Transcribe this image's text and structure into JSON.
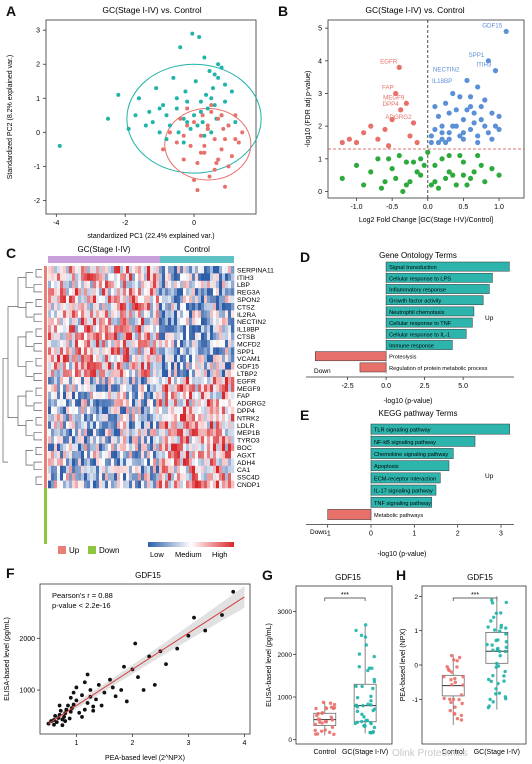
{
  "panel_letters": [
    "A",
    "B",
    "C",
    "D",
    "E",
    "F",
    "G",
    "H"
  ],
  "watermark": "Olink Proteomics",
  "chart_data": [
    {
      "panel": "A",
      "type": "scatter",
      "title": "GC(Stage I-IV) vs. Control",
      "xlabel": "standardized PC1 (22.4% explained var.)",
      "ylabel": "Standardized PC2 (8.2% explained var.)",
      "xlim": [
        -4.3,
        1.8
      ],
      "ylim": [
        -2.4,
        3.3
      ],
      "xticks": [
        "-4",
        "-2",
        "0"
      ],
      "xtick_values": [
        -4,
        -2,
        0
      ],
      "yticks": [
        "-2",
        "-1",
        "0",
        "1",
        "2",
        "3"
      ],
      "ytick_values": [
        -2,
        -1,
        0,
        1,
        2,
        3
      ],
      "series": [
        {
          "color": "#1fb3a9",
          "x": [
            -3.9,
            -2.5,
            -2.2,
            -1.9,
            -1.7,
            -1.6,
            -1.4,
            -1.3,
            -1.2,
            -1.1,
            -1.0,
            -0.9,
            -0.8,
            -0.7,
            -0.6,
            -0.5,
            -0.45,
            -0.4,
            -0.3,
            -0.25,
            -0.2,
            -0.1,
            -0.05,
            0.0,
            0.05,
            0.1,
            0.15,
            0.2,
            0.25,
            0.3,
            0.35,
            0.4,
            0.45,
            0.5,
            0.55,
            0.6,
            0.65,
            0.7,
            0.8,
            0.9,
            1.0,
            1.1,
            0.3,
            0.5,
            0.8,
            -0.3,
            -0.8,
            0.2,
            0.6,
            1.2,
            0.9,
            0.4,
            -0.5,
            0.7,
            -1.0,
            -0.2
          ],
          "y": [
            -0.4,
            0.4,
            1.1,
            0.1,
            0.5,
            1.0,
            0.2,
            0.6,
            0.3,
            1.3,
            0.0,
            0.8,
            0.5,
            0.2,
            1.6,
            0.7,
            0.0,
            2.5,
            0.4,
            1.2,
            0.9,
            0.1,
            2.9,
            0.5,
            1.5,
            0.2,
            2.8,
            0.9,
            0.3,
            2.2,
            1.1,
            0.7,
            1.8,
            0.0,
            1.3,
            1.7,
            0.4,
            1.6,
            0.5,
            0.9,
            0.2,
            1.2,
            -0.1,
            1.0,
            1.9,
            -0.3,
            -0.2,
            0.6,
            0.8,
            0.3,
            1.4,
            0.1,
            1.0,
            2.0,
            0.7,
            0.3
          ]
        },
        {
          "color": "#e8706a",
          "x": [
            -0.9,
            -0.7,
            -0.5,
            -0.4,
            -0.3,
            -0.2,
            -0.1,
            0.0,
            0.1,
            0.2,
            0.25,
            0.3,
            0.4,
            0.45,
            0.5,
            0.6,
            0.65,
            0.7,
            0.8,
            0.85,
            0.9,
            1.0,
            1.1,
            1.2,
            1.3,
            1.4,
            0.0,
            0.3,
            0.6,
            0.9,
            0.5,
            0.2,
            -0.2,
            0.7,
            1.0,
            0.4,
            0.1,
            1.2,
            0.8,
            -0.3
          ],
          "y": [
            -0.5,
            0.0,
            -0.3,
            0.4,
            -0.8,
            0.2,
            -0.4,
            0.3,
            -0.9,
            -0.1,
            0.5,
            -0.6,
            0.1,
            -1.3,
            0.6,
            -0.2,
            -0.9,
            0.4,
            -0.5,
            0.1,
            -1.6,
            0.2,
            -0.7,
            0.5,
            -0.3,
            0.0,
            -1.4,
            -0.4,
            -1.1,
            -0.2,
            0.8,
            -0.6,
            0.7,
            -0.8,
            -1.0,
            0.2,
            -1.7,
            -0.2,
            0.5,
            -0.1
          ]
        }
      ],
      "ellipses": [
        {
          "color": "#1fb3a9",
          "cx": 0.0,
          "cy": 0.4,
          "rx": 1.95,
          "ry": 1.6
        },
        {
          "color": "#e8706a",
          "cx": 0.4,
          "cy": -0.35,
          "rx": 1.25,
          "ry": 1.05
        }
      ]
    },
    {
      "panel": "B",
      "type": "scatter",
      "title": "GC(Stage I-IV) vs. Control",
      "xlabel": "Log2 Fold Change [GC(Stage I-IV)/Control]",
      "ylabel": "-log10 (FDR adj p-value)",
      "xlim": [
        -1.4,
        1.35
      ],
      "ylim": [
        -0.2,
        5.25
      ],
      "xticks": [
        "-1.0",
        "-0.5",
        "0.0",
        "0.5",
        "1.0"
      ],
      "xtick_values": [
        -1.0,
        -0.5,
        0.0,
        0.5,
        1.0
      ],
      "yticks": [
        "0",
        "1",
        "2",
        "3",
        "4",
        "5"
      ],
      "ytick_values": [
        0,
        1,
        2,
        3,
        4,
        5
      ],
      "series": [
        {
          "color": "#5b8fd6",
          "x": [
            1.1,
            0.85,
            0.95,
            0.05,
            0.2,
            0.3,
            0.4,
            0.5,
            0.55,
            0.6,
            0.7,
            0.75,
            0.8,
            0.9,
            1.0,
            0.15,
            0.25,
            0.35,
            0.45,
            0.65,
            0.1,
            0.2,
            0.3,
            0.5,
            0.6,
            0.7,
            0.8,
            0.9,
            1.0,
            0.05,
            0.15,
            0.4,
            0.55,
            0.75,
            0.85,
            0.95,
            0.3,
            0.45,
            0.6,
            0.2,
            0.35,
            0.7,
            0.1,
            0.25,
            0.5,
            0.65
          ],
          "y": [
            4.9,
            4.0,
            3.7,
            1.5,
            1.6,
            1.8,
            2.0,
            2.2,
            2.5,
            2.9,
            3.2,
            2.6,
            2.0,
            2.4,
            1.9,
            2.3,
            2.7,
            3.0,
            1.7,
            2.1,
            1.9,
            2.0,
            2.4,
            1.6,
            1.9,
            1.7,
            2.8,
            1.6,
            2.3,
            1.7,
            1.5,
            2.5,
            3.4,
            2.2,
            1.8,
            2.0,
            1.6,
            2.9,
            2.6,
            1.8,
            2.0,
            1.5,
            2.6,
            1.5,
            1.8,
            2.4
          ]
        },
        {
          "color": "#e8706a",
          "x": [
            -0.4,
            -0.45,
            -0.3,
            -0.38,
            -0.2,
            -1.1,
            -0.9,
            -1.0,
            -0.7,
            -0.6,
            -0.8,
            -0.5,
            -0.25,
            -0.15,
            -1.2,
            -0.55
          ],
          "y": [
            3.8,
            3.0,
            2.7,
            2.5,
            2.1,
            1.6,
            1.8,
            1.5,
            1.6,
            1.9,
            2.0,
            2.2,
            1.7,
            1.5,
            1.5,
            1.4
          ]
        },
        {
          "color": "#2eaa3c",
          "x": [
            -1.2,
            -1.0,
            -0.9,
            -0.8,
            -0.7,
            -0.6,
            -0.5,
            -0.4,
            -0.3,
            -0.2,
            -0.1,
            0.0,
            0.1,
            0.2,
            0.3,
            0.4,
            0.5,
            0.6,
            0.7,
            0.8,
            0.9,
            1.0,
            -0.65,
            -0.45,
            -0.25,
            -0.05,
            0.15,
            0.35,
            0.55,
            0.75,
            -0.55,
            -0.35,
            -0.15,
            0.05,
            0.25,
            0.45,
            0.65,
            -0.3,
            -0.1,
            0.1,
            0.3,
            0.5
          ],
          "y": [
            0.4,
            0.8,
            0.2,
            0.6,
            1.0,
            0.3,
            0.7,
            1.1,
            0.2,
            0.9,
            0.5,
            1.2,
            0.3,
            1.0,
            0.6,
            0.2,
            0.9,
            0.4,
            1.1,
            0.3,
            0.7,
            0.5,
            0.1,
            0.4,
            0.3,
            0.8,
            0.1,
            0.5,
            0.2,
            0.8,
            1.0,
            0.0,
            0.6,
            0.2,
            0.4,
            1.1,
            0.6,
            0.9,
            1.0,
            0.8,
            1.1,
            0.5
          ]
        }
      ],
      "annotations": [
        {
          "text": "GDF15",
          "x": 1.1,
          "y": 4.9,
          "color": "#5b8fd6"
        },
        {
          "text": "SPP1",
          "x": 0.85,
          "y": 4.0,
          "color": "#5b8fd6"
        },
        {
          "text": "NECTIN2",
          "x": 0.5,
          "y": 3.55,
          "color": "#5b8fd6"
        },
        {
          "text": "ITIH3",
          "x": 0.95,
          "y": 3.7,
          "color": "#5b8fd6"
        },
        {
          "text": "IL18BP",
          "x": 0.4,
          "y": 3.2,
          "color": "#5b8fd6"
        },
        {
          "text": "EGFR",
          "x": -0.4,
          "y": 3.8,
          "color": "#e8706a"
        },
        {
          "text": "FAP",
          "x": -0.45,
          "y": 3.0,
          "color": "#e8706a"
        },
        {
          "text": "MEGF9",
          "x": -0.3,
          "y": 2.7,
          "color": "#e8706a"
        },
        {
          "text": "DPP4",
          "x": -0.38,
          "y": 2.5,
          "color": "#e8706a"
        },
        {
          "text": "ADGRG2",
          "x": -0.2,
          "y": 2.1,
          "color": "#e8706a"
        }
      ],
      "threshold_y": 1.3,
      "threshold_x": 0.0
    },
    {
      "panel": "C",
      "type": "heatmap",
      "column_groups": [
        "GC(Stage I-IV)",
        "Control"
      ],
      "column_group_colors": [
        "#c9a0dc",
        "#5ec1c6"
      ],
      "genes": [
        "SERPINA11",
        "ITIH3",
        "LBP",
        "REG3A",
        "SPON2",
        "CTSZ",
        "IL2RA",
        "NECTIN2",
        "IL18BP",
        "CTSB",
        "MCFD2",
        "SPP1",
        "VCAM1",
        "GDF15",
        "LTBP2",
        "EGFR",
        "MEGF9",
        "FAP",
        "ADGRG2",
        "DPP4",
        "NTRK2",
        "LDLR",
        "MEP1B",
        "TYRO3",
        "BOC",
        "AGXT",
        "ADH4",
        "CA1",
        "SSC4D",
        "CNDP1"
      ],
      "row_groups": [
        "Up",
        "Down"
      ],
      "row_group_colors": [
        "#e8807a",
        "#8cc63f"
      ],
      "legend_scale": [
        "Low",
        "Medium",
        "High"
      ],
      "scale_colors": [
        "#2e5ea8",
        "#ffffff",
        "#d8262b"
      ]
    },
    {
      "panel": "D",
      "type": "bar",
      "title": "Gene Ontology Terms",
      "xlabel": "-log10 (p-value)",
      "xlim": [
        -5.2,
        8.3
      ],
      "xticks": [
        "-2.5",
        "0.0",
        "2.5",
        "5.0"
      ],
      "xtick_values": [
        -2.5,
        0.0,
        2.5,
        5.0
      ],
      "categories": [
        "Signal transduction",
        "Cellular response to LPS",
        "Inflammatory response",
        "Growth factor activity",
        "Neutrophil chemotaxis",
        "Cellular response to TNF",
        "Cellular response to IL-1",
        "Immune response",
        "Proteolysis",
        "Regulation of protein metabolic process"
      ],
      "values": [
        8.0,
        6.9,
        6.7,
        6.3,
        5.7,
        5.6,
        5.2,
        4.3,
        -4.6,
        -1.7
      ],
      "group_labels": {
        "up": "Up",
        "down": "Down"
      },
      "colors": {
        "up": "#2db5ad",
        "down": "#e8706a"
      }
    },
    {
      "panel": "E",
      "type": "bar",
      "title": "KEGG pathway Terms",
      "xlabel": "-log10 (p-value)",
      "xlim": [
        -1.5,
        3.3
      ],
      "xticks": [
        "-1",
        "0",
        "1",
        "2",
        "3"
      ],
      "xtick_values": [
        -1,
        0,
        1,
        2,
        3
      ],
      "categories": [
        "TLR signaling pathway",
        "NF-kB signaling pathway",
        "Chemokine signaling pathway",
        "Apoptosis",
        "ECM-receptor interaction",
        "IL-17 signaling pathway",
        "TNF signaling pathway",
        "Metabolic pathways"
      ],
      "values": [
        3.2,
        2.4,
        1.9,
        1.8,
        1.6,
        1.5,
        1.4,
        -1.0
      ],
      "group_labels": {
        "up": "Up",
        "down": "Down"
      },
      "colors": {
        "up": "#2db5ad",
        "down": "#e8706a"
      }
    },
    {
      "panel": "F",
      "type": "scatter",
      "title": "GDF15",
      "xlabel": "PEA-based level (2^NPX)",
      "ylabel": "ELISA-based level (pg/mL)",
      "xlim": [
        0.35,
        4.1
      ],
      "ylim": [
        150,
        3050
      ],
      "xticks": [
        "1",
        "2",
        "3",
        "4"
      ],
      "xtick_values": [
        1,
        2,
        3,
        4
      ],
      "yticks": [
        "1000",
        "2000"
      ],
      "ytick_values": [
        1000,
        2000
      ],
      "stats_line1": "Pearson's r = 0.88",
      "stats_line2": "p-value < 2.2e-16",
      "fit": {
        "intercept": 0.0,
        "slope": 700,
        "color": "#d63c3c"
      },
      "points": {
        "x": [
          0.5,
          0.55,
          0.6,
          0.62,
          0.65,
          0.68,
          0.7,
          0.72,
          0.75,
          0.78,
          0.8,
          0.82,
          0.85,
          0.88,
          0.9,
          0.92,
          0.95,
          1.0,
          1.05,
          1.1,
          1.15,
          1.2,
          1.25,
          1.3,
          1.35,
          1.4,
          1.5,
          1.6,
          1.7,
          1.8,
          1.9,
          2.0,
          2.1,
          2.2,
          2.3,
          2.4,
          2.6,
          2.8,
          3.0,
          3.3,
          3.6,
          3.8,
          0.6,
          0.7,
          0.8,
          0.9,
          1.0,
          1.1,
          1.2,
          1.3,
          0.75,
          0.95,
          1.15,
          1.45,
          1.65,
          1.85,
          2.05,
          2.5,
          3.1,
          1.25
        ],
        "y": [
          350,
          400,
          420,
          500,
          380,
          460,
          520,
          600,
          430,
          480,
          550,
          620,
          700,
          450,
          580,
          650,
          720,
          800,
          560,
          900,
          620,
          750,
          1000,
          680,
          820,
          1100,
          950,
          1200,
          880,
          1000,
          780,
          1400,
          1250,
          1000,
          1650,
          1100,
          1500,
          1800,
          2050,
          2150,
          2450,
          2900,
          330,
          700,
          400,
          850,
          1050,
          480,
          1300,
          600,
          320,
          950,
          1150,
          700,
          1050,
          1450,
          1900,
          1750,
          2400,
          870
        ]
      }
    },
    {
      "panel": "G",
      "type": "box",
      "title": "GDF15",
      "ylabel": "ELISA-based level (pg/mL)",
      "categories": [
        "Control",
        "GC(Stage I-IV)"
      ],
      "ylim": [
        -100,
        3600
      ],
      "yticks": [
        "0",
        "1000",
        "2000",
        "3000"
      ],
      "ytick_values": [
        0,
        1000,
        2000,
        3000
      ],
      "significance": "***",
      "boxes": [
        {
          "color": "#e8706a",
          "min": 100,
          "q1": 330,
          "median": 470,
          "q3": 620,
          "max": 900
        },
        {
          "color": "#1fb3a9",
          "min": 150,
          "q1": 420,
          "median": 800,
          "q3": 1300,
          "max": 2700
        }
      ]
    },
    {
      "panel": "H",
      "type": "box",
      "title": "GDF15",
      "ylabel": "PEA-based level (NPX)",
      "categories": [
        "Control",
        "GC(Stage I-IV)"
      ],
      "ylim": [
        -2.3,
        2.3
      ],
      "yticks": [
        "-1",
        "0",
        "1",
        "2"
      ],
      "ytick_values": [
        -1,
        0,
        1,
        2
      ],
      "significance": "***",
      "boxes": [
        {
          "color": "#e8706a",
          "min": -1.75,
          "q1": -0.9,
          "median": -0.6,
          "q3": -0.3,
          "max": 0.3
        },
        {
          "color": "#1fb3a9",
          "min": -1.3,
          "q1": 0.05,
          "median": 0.4,
          "q3": 0.95,
          "max": 2.0
        }
      ]
    }
  ]
}
